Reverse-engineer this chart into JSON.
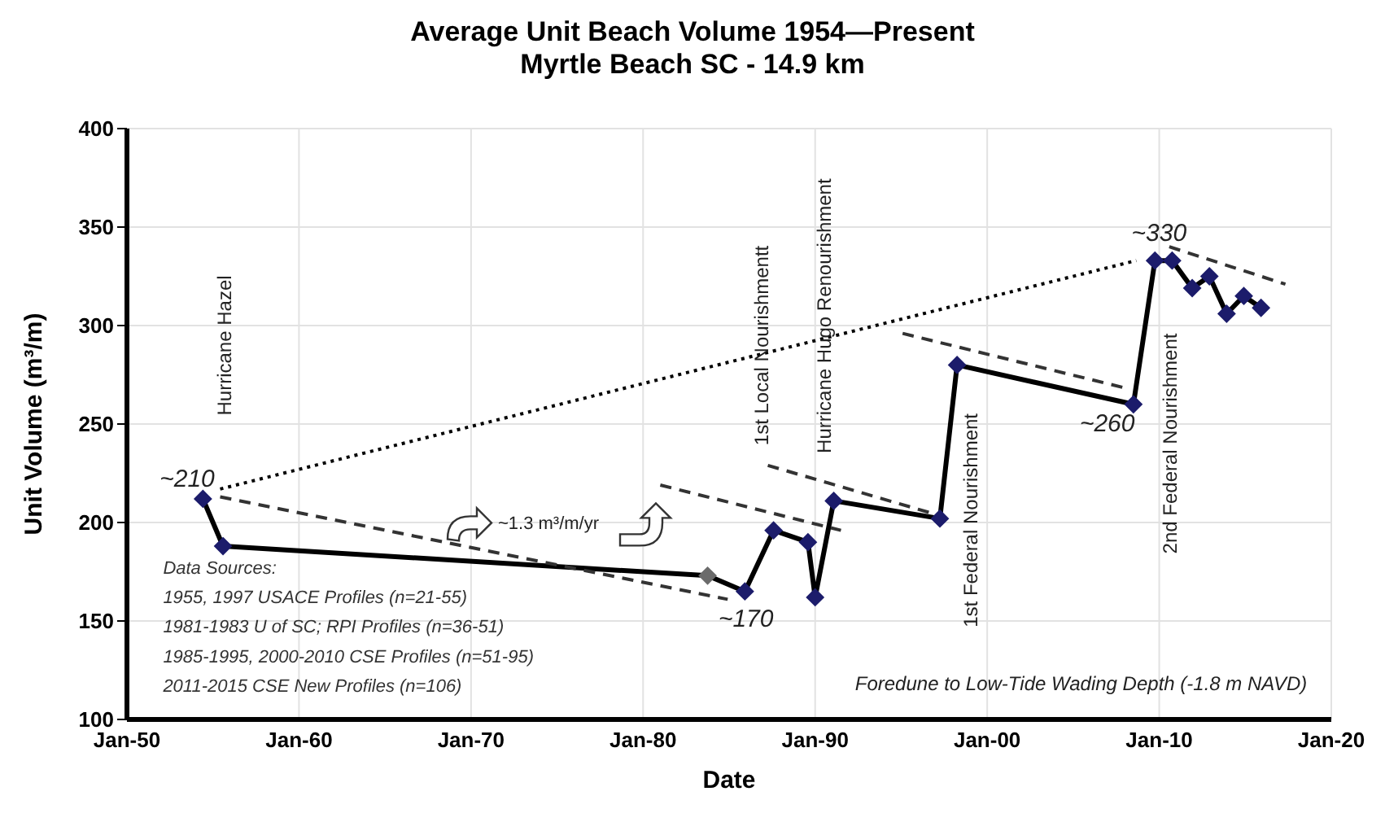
{
  "chart_data": {
    "type": "line",
    "title": "Average Unit Beach Volume 1954—Present",
    "subtitle": "Myrtle Beach SC - 14.9 km",
    "xlabel": "Date",
    "ylabel": "Unit Volume (m³/m)",
    "xlim": [
      "1950-01",
      "2020-01"
    ],
    "xticks": [
      {
        "value": "1950-01",
        "label": "Jan-50"
      },
      {
        "value": "1960-01",
        "label": "Jan-60"
      },
      {
        "value": "1970-01",
        "label": "Jan-70"
      },
      {
        "value": "1980-01",
        "label": "Jan-80"
      },
      {
        "value": "1990-01",
        "label": "Jan-90"
      },
      {
        "value": "2000-01",
        "label": "Jan-00"
      },
      {
        "value": "2010-01",
        "label": "Jan-10"
      },
      {
        "value": "2020-01",
        "label": "Jan-20"
      }
    ],
    "ylim": [
      100,
      400
    ],
    "yticks": [
      100,
      150,
      200,
      250,
      300,
      350,
      400
    ],
    "grid": true,
    "series": [
      {
        "color": "#000000",
        "colors": [
          "#1c1c6b",
          "#1c1c6b",
          "#6b6b6b",
          "#1c1c6b",
          "#1c1c6b",
          "#1c1c6b",
          "#1c1c6b",
          "#1c1c6b",
          "#1c1c6b",
          "#1c1c6b",
          "#1c1c6b",
          "#1c1c6b",
          "#1c1c6b",
          "#1c1c6b",
          "#1c1c6b",
          "#1c1c6b",
          "#1c1c6b",
          "#1c1c6b"
        ],
        "marker": "diamond",
        "line_style": "solid",
        "x": [
          "1954-06",
          "1955-08",
          "1983-10",
          "1985-12",
          "1987-08",
          "1989-08",
          "1990-01",
          "1991-02",
          "1997-04",
          "1998-04",
          "2008-07",
          "2009-10",
          "2010-10",
          "2011-12",
          "2012-12",
          "2013-12",
          "2014-12",
          "2015-12"
        ],
        "values": [
          212,
          188,
          173,
          165,
          196,
          190,
          162,
          211,
          202,
          280,
          260,
          333,
          333,
          319,
          325,
          306,
          315,
          309
        ]
      },
      {
        "type": "line",
        "color": "#000000",
        "line_style": "dotted",
        "x": [
          "1955-06",
          "2008-09"
        ],
        "values": [
          217,
          333
        ]
      },
      {
        "type": "line",
        "color": "#333333",
        "line_style": "dashed",
        "x": [
          "1955-06",
          "1984-12"
        ],
        "values": [
          213,
          161
        ]
      },
      {
        "type": "line",
        "color": "#333333",
        "line_style": "dashed",
        "x": [
          "1981-01",
          "1991-07"
        ],
        "values": [
          219,
          196
        ]
      },
      {
        "type": "line",
        "color": "#333333",
        "line_style": "dashed",
        "x": [
          "1987-04",
          "1996-09"
        ],
        "values": [
          229,
          205
        ]
      },
      {
        "type": "line",
        "color": "#333333",
        "line_style": "dashed",
        "x": [
          "1995-02",
          "2008-03"
        ],
        "values": [
          296,
          268
        ]
      },
      {
        "type": "line",
        "color": "#333333",
        "line_style": "dashed",
        "x": [
          "2010-08",
          "2017-05"
        ],
        "values": [
          340,
          321
        ]
      }
    ],
    "annotations": [
      "Hurricane Hazel",
      "1st Local Nourishmentt",
      "Hurricane Hugo Renourishment",
      "1st Federal Nourishment",
      "2nd Federal Nourishment",
      "~210",
      "~170",
      "~260",
      "~330",
      "~1.3 m³/m/yr",
      "Data Sources:",
      "1955, 1997 USACE Profiles (n=21-55)",
      "1981-1983 U of SC; RPI Profiles (n=36-51)",
      "1985-1995, 2000-2010 CSE Profiles (n=51-95)",
      "2011-2015 CSE New Profiles (n=106)",
      "Foredune to Low-Tide Wading Depth (-1.8 m NAVD)"
    ]
  }
}
